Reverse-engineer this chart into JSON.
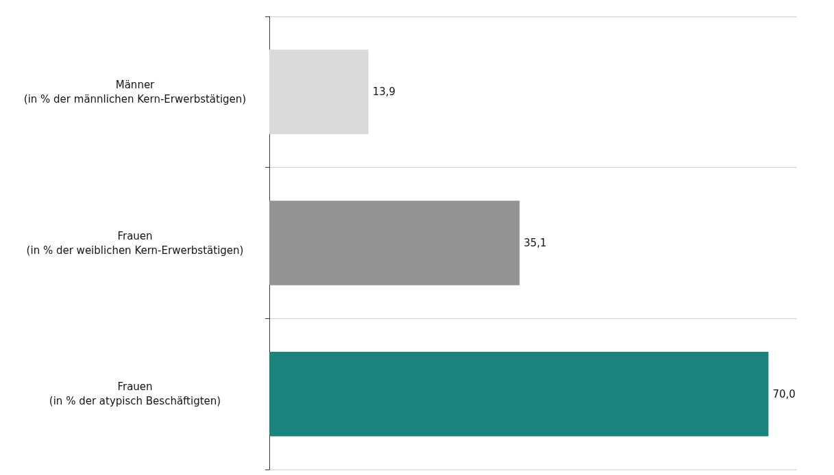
{
  "chart_data": {
    "type": "bar",
    "orientation": "horizontal",
    "categories": [
      "Männer\n(in % der männlichen Kern-Erwerbstätigen)",
      "Frauen\n(in % der weiblichen Kern-Erwerbstätigen)",
      "Frauen\n(in % der atypisch Beschäftigten)"
    ],
    "values": [
      13.9,
      35.1,
      70.0
    ],
    "colors": [
      "#d9d9d9",
      "#939393",
      "#1a837d"
    ],
    "value_labels": [
      "13,9",
      "35,1",
      "70,0"
    ],
    "xlim": [
      0,
      74
    ],
    "tick_labels": "y",
    "grid": "y"
  }
}
